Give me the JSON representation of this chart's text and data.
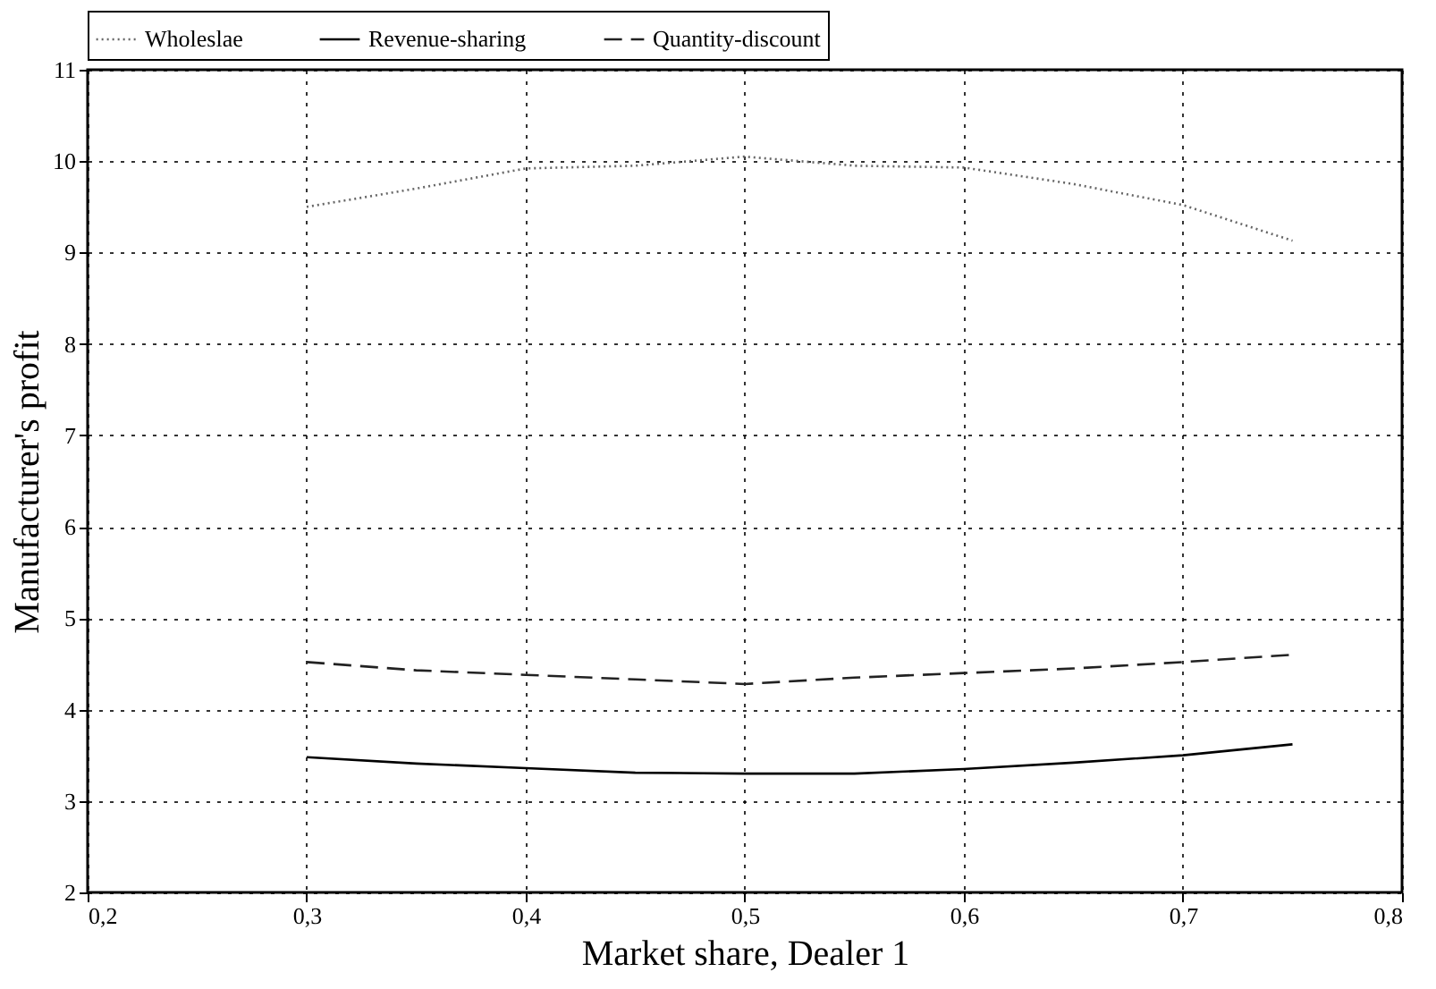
{
  "chart_data": {
    "type": "line",
    "xlabel": "Market share, Dealer 1",
    "ylabel": "Manufacturer's profit",
    "x": [
      0.3,
      0.35,
      0.4,
      0.45,
      0.5,
      0.55,
      0.6,
      0.65,
      0.7,
      0.75
    ],
    "series": [
      {
        "name": "Wholeslae",
        "color": "#666666",
        "line_style": "dotted",
        "values": [
          9.5,
          9.7,
          9.92,
          9.95,
          10.05,
          9.95,
          9.93,
          9.75,
          9.52,
          9.13
        ]
      },
      {
        "name": "Revenue-sharing",
        "color": "#000000",
        "line_style": "solid",
        "values": [
          3.48,
          3.41,
          3.36,
          3.31,
          3.3,
          3.3,
          3.35,
          3.42,
          3.5,
          3.62
        ]
      },
      {
        "name": "Quantity-discount",
        "color": "#222222",
        "line_style": "dashed",
        "values": [
          4.52,
          4.43,
          4.38,
          4.33,
          4.28,
          4.35,
          4.4,
          4.45,
          4.52,
          4.6
        ]
      }
    ],
    "xlim": [
      0.2,
      0.8
    ],
    "xticks": [
      {
        "value": 0.2,
        "label": "0,2"
      },
      {
        "value": 0.3,
        "label": "0,3"
      },
      {
        "value": 0.4,
        "label": "0,4"
      },
      {
        "value": 0.5,
        "label": "0,5"
      },
      {
        "value": 0.6,
        "label": "0,6"
      },
      {
        "value": 0.7,
        "label": "0,7"
      },
      {
        "value": 0.8,
        "label": "0,8"
      }
    ],
    "ylim": [
      2,
      11
    ],
    "yticks": [
      2,
      3,
      4,
      5,
      6,
      7,
      8,
      9,
      10,
      11
    ],
    "grid": true,
    "legend": "top",
    "marker": "none"
  }
}
